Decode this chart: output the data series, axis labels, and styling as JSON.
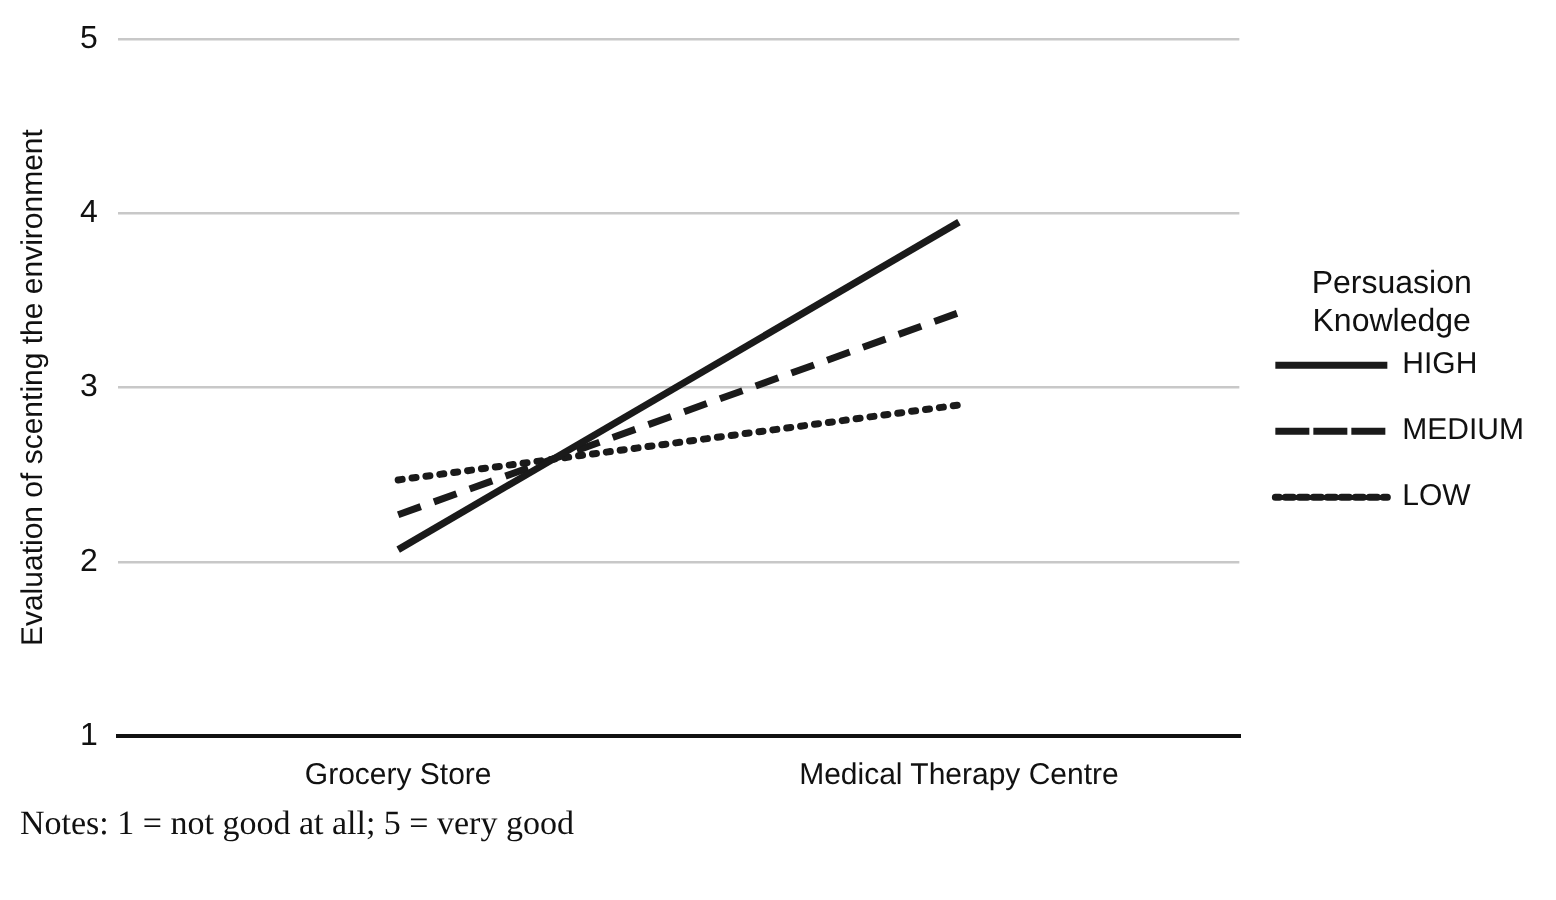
{
  "chart_data": {
    "type": "line",
    "ylabel": "Evaluation of scenting the environment",
    "legend_title": "Persuasion Knowledge",
    "categories": [
      "Grocery Store",
      "Medical Therapy Centre"
    ],
    "series": [
      {
        "name": "HIGH",
        "color": "#1a1a1a",
        "values": [
          2.07,
          3.95
        ],
        "line_style": "solid"
      },
      {
        "name": "MEDIUM",
        "color": "#1a1a1a",
        "values": [
          2.27,
          3.43
        ],
        "line_style": "dashed"
      },
      {
        "name": "LOW",
        "color": "#1a1a1a",
        "values": [
          2.47,
          2.9
        ],
        "line_style": "dotted"
      }
    ],
    "ylim": [
      1,
      5
    ],
    "yticks": [
      1,
      2,
      3,
      4,
      5
    ],
    "grid": "y",
    "legend": "right",
    "marker": "none",
    "annotations": [
      "Notes: 1 = not good at all; 5 = very good"
    ]
  }
}
